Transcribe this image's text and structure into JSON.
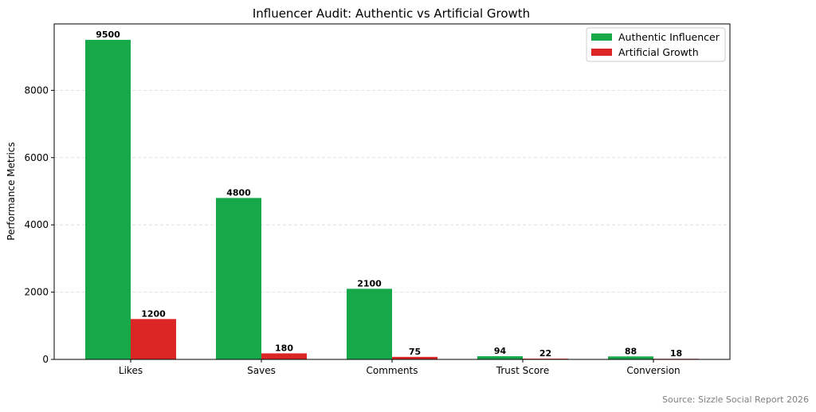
{
  "chart_data": {
    "type": "bar",
    "title": "Influencer Audit: Authentic vs Artificial Growth",
    "xlabel": "",
    "ylabel": "Performance Metrics",
    "categories": [
      "Likes",
      "Saves",
      "Comments",
      "Trust Score",
      "Conversion"
    ],
    "series": [
      {
        "name": "Authentic Influencer",
        "color": "#16a849",
        "values": [
          9500,
          4800,
          2100,
          94,
          88
        ]
      },
      {
        "name": "Artificial Growth",
        "color": "#dc2626",
        "values": [
          1200,
          180,
          75,
          22,
          18
        ]
      }
    ],
    "ylim": [
      0,
      9975
    ],
    "yticks": [
      0,
      2000,
      4000,
      6000,
      8000
    ],
    "grid": true,
    "legend_position": "top-right"
  },
  "source_note": "Source: Sizzle Social Report 2026"
}
